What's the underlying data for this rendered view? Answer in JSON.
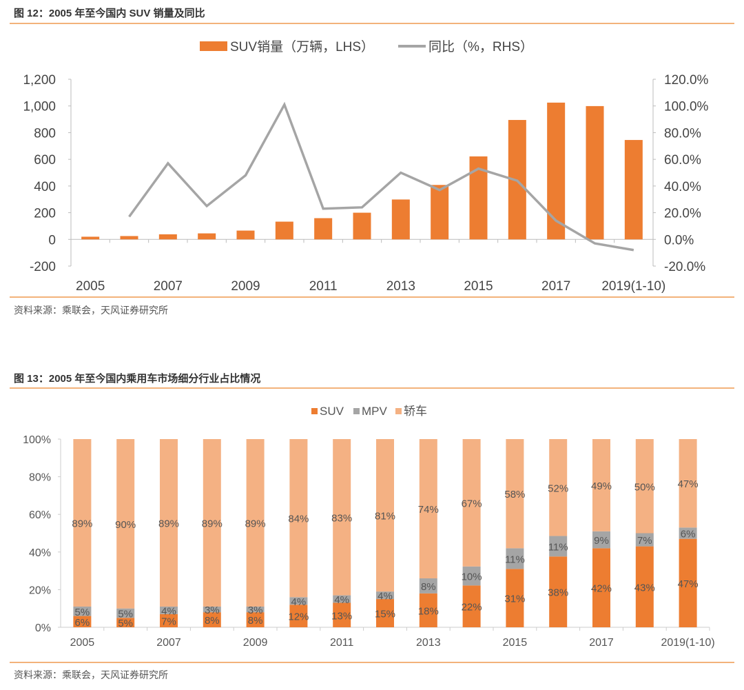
{
  "figure1": {
    "title": "图 12：2005 年至今国内 SUV 销量及同比",
    "source": "资料来源：乘联会，天风证券研究所"
  },
  "figure2": {
    "title": "图 13：2005 年至今国内乘用车市场细分行业占比情况",
    "source": "资料来源：乘联会，天风证券研究所"
  },
  "chart_data": [
    {
      "type": "bar+line",
      "categories": [
        "2005",
        "2006",
        "2007",
        "2008",
        "2009",
        "2010",
        "2011",
        "2012",
        "2013",
        "2014",
        "2015",
        "2016",
        "2017",
        "2018",
        "2019(1-10)"
      ],
      "x_tick_labels": [
        "2005",
        "2007",
        "2009",
        "2011",
        "2013",
        "2015",
        "2017",
        "2019(1-10)"
      ],
      "series": [
        {
          "name": "SUV销量（万辆，LHS）",
          "type": "bar",
          "axis": "left",
          "color": "#ed7d31",
          "values": [
            20,
            25,
            38,
            45,
            66,
            133,
            159,
            200,
            299,
            408,
            622,
            895,
            1025,
            999,
            745
          ]
        },
        {
          "name": "同比（%，RHS）",
          "type": "line",
          "axis": "right",
          "color": "#a5a5a5",
          "values": [
            null,
            17,
            57,
            25,
            48,
            101,
            23,
            24,
            50,
            37,
            53,
            44,
            14,
            -3,
            -8
          ]
        }
      ],
      "left_axis": {
        "ylim": [
          -200,
          1200
        ],
        "ticks": [
          "-200",
          "0",
          "200",
          "400",
          "600",
          "800",
          "1,000",
          "1,200"
        ]
      },
      "right_axis": {
        "ylim": [
          -20,
          120
        ],
        "ticks": [
          "-20.0%",
          "0.0%",
          "20.0%",
          "40.0%",
          "60.0%",
          "80.0%",
          "100.0%",
          "120.0%"
        ]
      },
      "legend": "top",
      "grid": false
    },
    {
      "type": "stacked-bar",
      "categories": [
        "2005",
        "2006",
        "2007",
        "2008",
        "2009",
        "2010",
        "2011",
        "2012",
        "2013",
        "2014",
        "2015",
        "2016",
        "2017",
        "2018",
        "2019(1-10)"
      ],
      "x_tick_labels": [
        "2005",
        "2007",
        "2009",
        "2011",
        "2013",
        "2015",
        "2017",
        "2019(1-10)"
      ],
      "series": [
        {
          "name": "SUV",
          "color": "#ed7d31",
          "values": [
            6,
            5,
            7,
            8,
            8,
            12,
            13,
            15,
            18,
            22,
            31,
            38,
            42,
            43,
            47
          ]
        },
        {
          "name": "MPV",
          "color": "#a5a5a5",
          "values": [
            5,
            5,
            4,
            3,
            3,
            4,
            4,
            4,
            8,
            10,
            11,
            11,
            9,
            7,
            6
          ]
        },
        {
          "name": "轿车",
          "color": "#f4b183",
          "values": [
            89,
            90,
            89,
            89,
            89,
            84,
            83,
            81,
            74,
            67,
            58,
            52,
            49,
            50,
            47
          ]
        }
      ],
      "y_axis": {
        "ylim": [
          0,
          100
        ],
        "ticks": [
          "0%",
          "20%",
          "40%",
          "60%",
          "80%",
          "100%"
        ]
      },
      "legend": "top",
      "grid": false
    }
  ]
}
